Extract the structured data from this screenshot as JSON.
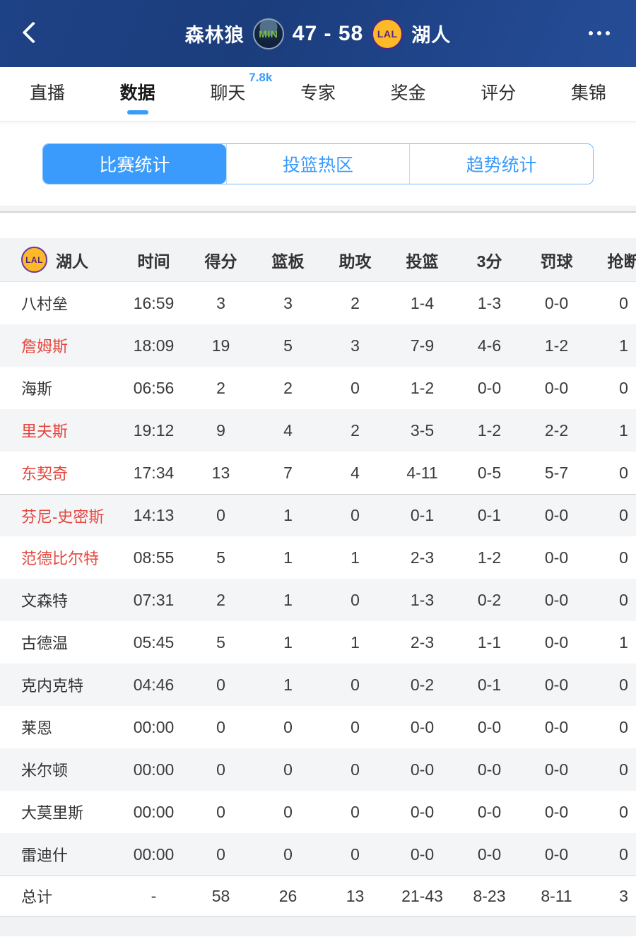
{
  "header": {
    "away_team": "森林狼",
    "away_badge": "MIN",
    "score": "47 - 58",
    "home_badge": "LAL",
    "home_team": "湖人"
  },
  "tabs": [
    {
      "label": "直播",
      "active": false
    },
    {
      "label": "数据",
      "active": true
    },
    {
      "label": "聊天",
      "badge": "7.8k",
      "active": false
    },
    {
      "label": "专家",
      "active": false
    },
    {
      "label": "奖金",
      "active": false
    },
    {
      "label": "评分",
      "active": false
    },
    {
      "label": "集锦",
      "active": false
    }
  ],
  "segments": [
    {
      "label": "比赛统计",
      "active": true
    },
    {
      "label": "投篮热区",
      "active": false
    },
    {
      "label": "趋势统计",
      "active": false
    }
  ],
  "colors": {
    "accent_blue": "#3a9bfc",
    "header_navy": "#1e4286",
    "on_court_red": "#e5463e",
    "lakers_gold": "#fdb927",
    "lakers_purple": "#552583",
    "wolves_green": "#79bc43",
    "row_alt_gray": "#f4f5f7",
    "header_row_gray": "#f2f3f5"
  },
  "table": {
    "team_badge": "LAL",
    "team_name": "湖人",
    "columns": [
      "时间",
      "得分",
      "篮板",
      "助攻",
      "投篮",
      "3分",
      "罚球",
      "抢断"
    ],
    "rows": [
      {
        "name": "八村垒",
        "on_court": false,
        "values": [
          "16:59",
          "3",
          "3",
          "2",
          "1-4",
          "1-3",
          "0-0",
          "0"
        ]
      },
      {
        "name": "詹姆斯",
        "on_court": true,
        "values": [
          "18:09",
          "19",
          "5",
          "3",
          "7-9",
          "4-6",
          "1-2",
          "1"
        ]
      },
      {
        "name": "海斯",
        "on_court": false,
        "values": [
          "06:56",
          "2",
          "2",
          "0",
          "1-2",
          "0-0",
          "0-0",
          "0"
        ]
      },
      {
        "name": "里夫斯",
        "on_court": true,
        "values": [
          "19:12",
          "9",
          "4",
          "2",
          "3-5",
          "1-2",
          "2-2",
          "1"
        ]
      },
      {
        "name": "东契奇",
        "on_court": true,
        "values": [
          "17:34",
          "13",
          "7",
          "4",
          "4-11",
          "0-5",
          "5-7",
          "0"
        ]
      },
      {
        "name": "芬尼-史密斯",
        "on_court": true,
        "values": [
          "14:13",
          "0",
          "1",
          "0",
          "0-1",
          "0-1",
          "0-0",
          "0"
        ],
        "section_break": true
      },
      {
        "name": "范德比尔特",
        "on_court": true,
        "values": [
          "08:55",
          "5",
          "1",
          "1",
          "2-3",
          "1-2",
          "0-0",
          "0"
        ]
      },
      {
        "name": "文森特",
        "on_court": false,
        "values": [
          "07:31",
          "2",
          "1",
          "0",
          "1-3",
          "0-2",
          "0-0",
          "0"
        ]
      },
      {
        "name": "古德温",
        "on_court": false,
        "values": [
          "05:45",
          "5",
          "1",
          "1",
          "2-3",
          "1-1",
          "0-0",
          "1"
        ]
      },
      {
        "name": "克内克特",
        "on_court": false,
        "values": [
          "04:46",
          "0",
          "1",
          "0",
          "0-2",
          "0-1",
          "0-0",
          "0"
        ]
      },
      {
        "name": "莱恩",
        "on_court": false,
        "values": [
          "00:00",
          "0",
          "0",
          "0",
          "0-0",
          "0-0",
          "0-0",
          "0"
        ]
      },
      {
        "name": "米尔顿",
        "on_court": false,
        "values": [
          "00:00",
          "0",
          "0",
          "0",
          "0-0",
          "0-0",
          "0-0",
          "0"
        ]
      },
      {
        "name": "大莫里斯",
        "on_court": false,
        "values": [
          "00:00",
          "0",
          "0",
          "0",
          "0-0",
          "0-0",
          "0-0",
          "0"
        ]
      },
      {
        "name": "雷迪什",
        "on_court": false,
        "values": [
          "00:00",
          "0",
          "0",
          "0",
          "0-0",
          "0-0",
          "0-0",
          "0"
        ]
      }
    ],
    "total": {
      "name": "总计",
      "values": [
        "-",
        "58",
        "26",
        "13",
        "21-43",
        "8-23",
        "8-11",
        "3"
      ]
    }
  }
}
